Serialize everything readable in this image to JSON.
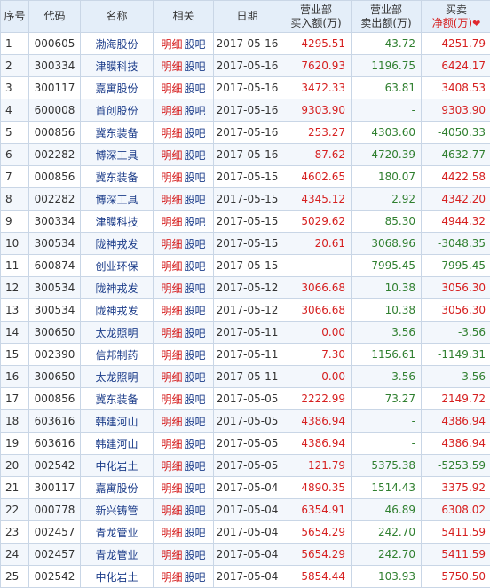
{
  "columns": {
    "index": "序号",
    "code": "代码",
    "name": "名称",
    "related": "相关",
    "date": "日期",
    "buy": [
      "营业部",
      "买入额(万)"
    ],
    "sell": [
      "营业部",
      "卖出额(万)"
    ],
    "net": [
      "买卖",
      "净额(万)"
    ]
  },
  "labels": {
    "detail": "明细",
    "forum": "股吧"
  },
  "colors": {
    "up": "#d62020",
    "down": "#2f7f2f",
    "link": "#1c3d8a",
    "header_bg": "#e4eef9"
  },
  "rows": [
    {
      "idx": "1",
      "code": "000605",
      "name": "渤海股份",
      "date": "2017-05-16",
      "buy": "4295.51",
      "sell": "43.72",
      "net": "4251.79"
    },
    {
      "idx": "2",
      "code": "300334",
      "name": "津膜科技",
      "date": "2017-05-16",
      "buy": "7620.93",
      "sell": "1196.75",
      "net": "6424.17"
    },
    {
      "idx": "3",
      "code": "300117",
      "name": "嘉寓股份",
      "date": "2017-05-16",
      "buy": "3472.33",
      "sell": "63.81",
      "net": "3408.53"
    },
    {
      "idx": "4",
      "code": "600008",
      "name": "首创股份",
      "date": "2017-05-16",
      "buy": "9303.90",
      "sell": "-",
      "net": "9303.90"
    },
    {
      "idx": "5",
      "code": "000856",
      "name": "冀东装备",
      "date": "2017-05-16",
      "buy": "253.27",
      "sell": "4303.60",
      "net": "-4050.33"
    },
    {
      "idx": "6",
      "code": "002282",
      "name": "博深工具",
      "date": "2017-05-16",
      "buy": "87.62",
      "sell": "4720.39",
      "net": "-4632.77"
    },
    {
      "idx": "7",
      "code": "000856",
      "name": "冀东装备",
      "date": "2017-05-15",
      "buy": "4602.65",
      "sell": "180.07",
      "net": "4422.58"
    },
    {
      "idx": "8",
      "code": "002282",
      "name": "博深工具",
      "date": "2017-05-15",
      "buy": "4345.12",
      "sell": "2.92",
      "net": "4342.20"
    },
    {
      "idx": "9",
      "code": "300334",
      "name": "津膜科技",
      "date": "2017-05-15",
      "buy": "5029.62",
      "sell": "85.30",
      "net": "4944.32"
    },
    {
      "idx": "10",
      "code": "300534",
      "name": "陇神戎发",
      "date": "2017-05-15",
      "buy": "20.61",
      "sell": "3068.96",
      "net": "-3048.35"
    },
    {
      "idx": "11",
      "code": "600874",
      "name": "创业环保",
      "date": "2017-05-15",
      "buy": "-",
      "sell": "7995.45",
      "net": "-7995.45"
    },
    {
      "idx": "12",
      "code": "300534",
      "name": "陇神戎发",
      "date": "2017-05-12",
      "buy": "3066.68",
      "sell": "10.38",
      "net": "3056.30"
    },
    {
      "idx": "13",
      "code": "300534",
      "name": "陇神戎发",
      "date": "2017-05-12",
      "buy": "3066.68",
      "sell": "10.38",
      "net": "3056.30"
    },
    {
      "idx": "14",
      "code": "300650",
      "name": "太龙照明",
      "date": "2017-05-11",
      "buy": "0.00",
      "sell": "3.56",
      "net": "-3.56"
    },
    {
      "idx": "15",
      "code": "002390",
      "name": "信邦制药",
      "date": "2017-05-11",
      "buy": "7.30",
      "sell": "1156.61",
      "net": "-1149.31"
    },
    {
      "idx": "16",
      "code": "300650",
      "name": "太龙照明",
      "date": "2017-05-11",
      "buy": "0.00",
      "sell": "3.56",
      "net": "-3.56"
    },
    {
      "idx": "17",
      "code": "000856",
      "name": "冀东装备",
      "date": "2017-05-05",
      "buy": "2222.99",
      "sell": "73.27",
      "net": "2149.72"
    },
    {
      "idx": "18",
      "code": "603616",
      "name": "韩建河山",
      "date": "2017-05-05",
      "buy": "4386.94",
      "sell": "-",
      "net": "4386.94"
    },
    {
      "idx": "19",
      "code": "603616",
      "name": "韩建河山",
      "date": "2017-05-05",
      "buy": "4386.94",
      "sell": "-",
      "net": "4386.94"
    },
    {
      "idx": "20",
      "code": "002542",
      "name": "中化岩土",
      "date": "2017-05-05",
      "buy": "121.79",
      "sell": "5375.38",
      "net": "-5253.59"
    },
    {
      "idx": "21",
      "code": "300117",
      "name": "嘉寓股份",
      "date": "2017-05-04",
      "buy": "4890.35",
      "sell": "1514.43",
      "net": "3375.92"
    },
    {
      "idx": "22",
      "code": "000778",
      "name": "新兴铸管",
      "date": "2017-05-04",
      "buy": "6354.91",
      "sell": "46.89",
      "net": "6308.02"
    },
    {
      "idx": "23",
      "code": "002457",
      "name": "青龙管业",
      "date": "2017-05-04",
      "buy": "5654.29",
      "sell": "242.70",
      "net": "5411.59"
    },
    {
      "idx": "24",
      "code": "002457",
      "name": "青龙管业",
      "date": "2017-05-04",
      "buy": "5654.29",
      "sell": "242.70",
      "net": "5411.59"
    },
    {
      "idx": "25",
      "code": "002542",
      "name": "中化岩土",
      "date": "2017-05-04",
      "buy": "5854.44",
      "sell": "103.93",
      "net": "5750.50"
    }
  ]
}
